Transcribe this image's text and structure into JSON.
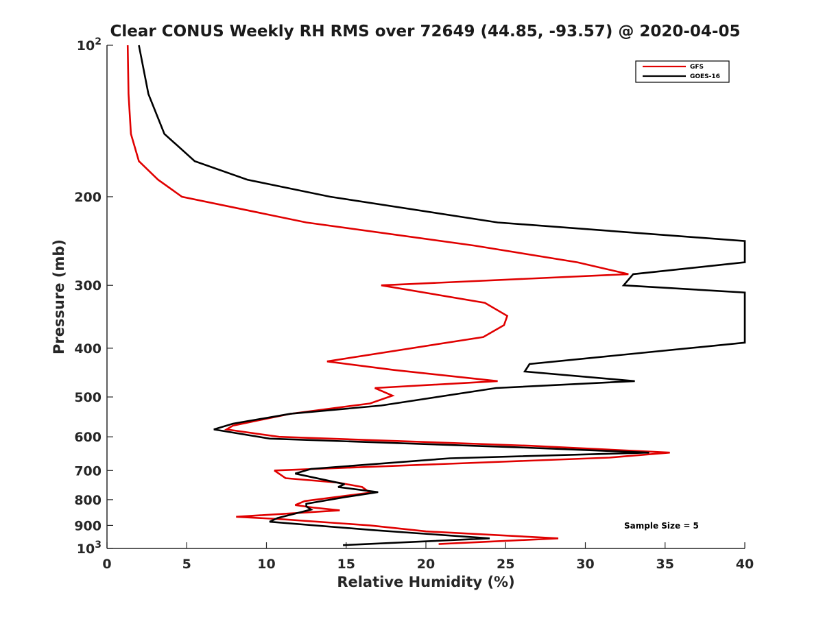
{
  "chart_data": {
    "type": "line",
    "title": "Clear CONUS Weekly RH RMS over 72649 (44.85, -93.57) @ 2020-04-05",
    "xlabel": "Relative Humidity (%)",
    "ylabel": "Pressure (mb)",
    "xlim": [
      0,
      40
    ],
    "ylim": [
      100,
      1000
    ],
    "y_scale": "log",
    "y_reversed": true,
    "x_ticks": [
      0,
      5,
      10,
      15,
      20,
      25,
      30,
      35,
      40
    ],
    "x_tick_labels": [
      "0",
      "5",
      "10",
      "15",
      "20",
      "25",
      "30",
      "35",
      "40"
    ],
    "y_ticks": [
      100,
      200,
      300,
      400,
      500,
      600,
      700,
      800,
      900,
      1000
    ],
    "y_tick_labels": [
      {
        "base": "10",
        "exp": "2"
      },
      {
        "base": "200"
      },
      {
        "base": "300"
      },
      {
        "base": "400"
      },
      {
        "base": "500"
      },
      {
        "base": "600"
      },
      {
        "base": "700"
      },
      {
        "base": "800"
      },
      {
        "base": "900"
      },
      {
        "base": "10",
        "exp": "3"
      }
    ],
    "grid": false,
    "legend_position": "top-right",
    "annotation": "Sample Size = 5",
    "series": [
      {
        "name": "GFS",
        "color": "#e00000",
        "points": [
          [
            1.3,
            100
          ],
          [
            1.35,
            125
          ],
          [
            1.5,
            150
          ],
          [
            2.0,
            170
          ],
          [
            3.2,
            185
          ],
          [
            4.7,
            200
          ],
          [
            12.5,
            225
          ],
          [
            23.0,
            250
          ],
          [
            29.5,
            270
          ],
          [
            32.7,
            285
          ],
          [
            17.2,
            300
          ],
          [
            23.7,
            325
          ],
          [
            25.1,
            345
          ],
          [
            24.9,
            360
          ],
          [
            23.6,
            380
          ],
          [
            13.8,
            425
          ],
          [
            18.0,
            442
          ],
          [
            24.5,
            465
          ],
          [
            16.8,
            480
          ],
          [
            17.9,
            497
          ],
          [
            16.5,
            515
          ],
          [
            11.5,
            540
          ],
          [
            7.9,
            570
          ],
          [
            7.5,
            580
          ],
          [
            10.8,
            600
          ],
          [
            26.5,
            625
          ],
          [
            35.3,
            645
          ],
          [
            31.5,
            660
          ],
          [
            10.5,
            700
          ],
          [
            11.2,
            725
          ],
          [
            14.5,
            740
          ],
          [
            16.0,
            755
          ],
          [
            16.5,
            775
          ],
          [
            12.4,
            805
          ],
          [
            11.8,
            820
          ],
          [
            13.0,
            830
          ],
          [
            14.6,
            840
          ],
          [
            8.1,
            865
          ],
          [
            11.0,
            875
          ],
          [
            16.5,
            900
          ],
          [
            20.0,
            925
          ],
          [
            28.3,
            955
          ],
          [
            20.8,
            980
          ]
        ]
      },
      {
        "name": "GOES-16",
        "color": "#000000",
        "points": [
          [
            2.0,
            100
          ],
          [
            2.6,
            125
          ],
          [
            3.6,
            150
          ],
          [
            5.5,
            170
          ],
          [
            8.8,
            185
          ],
          [
            14.0,
            200
          ],
          [
            24.5,
            225
          ],
          [
            40.0,
            245
          ],
          [
            40.0,
            270
          ],
          [
            33.0,
            285
          ],
          [
            32.4,
            300
          ],
          [
            40.0,
            310
          ],
          [
            40.0,
            390
          ],
          [
            26.5,
            430
          ],
          [
            26.2,
            445
          ],
          [
            33.1,
            465
          ],
          [
            24.4,
            480
          ],
          [
            17.2,
            520
          ],
          [
            11.5,
            540
          ],
          [
            7.9,
            565
          ],
          [
            6.7,
            580
          ],
          [
            10.2,
            605
          ],
          [
            26.0,
            630
          ],
          [
            34.0,
            645
          ],
          [
            21.5,
            662
          ],
          [
            12.8,
            695
          ],
          [
            11.8,
            710
          ],
          [
            14.9,
            745
          ],
          [
            14.5,
            755
          ],
          [
            17.0,
            773
          ],
          [
            15.0,
            790
          ],
          [
            12.5,
            815
          ],
          [
            12.5,
            825
          ],
          [
            12.8,
            837
          ],
          [
            10.7,
            870
          ],
          [
            10.2,
            885
          ],
          [
            16.8,
            920
          ],
          [
            24.0,
            955
          ],
          [
            14.8,
            985
          ]
        ]
      }
    ]
  }
}
